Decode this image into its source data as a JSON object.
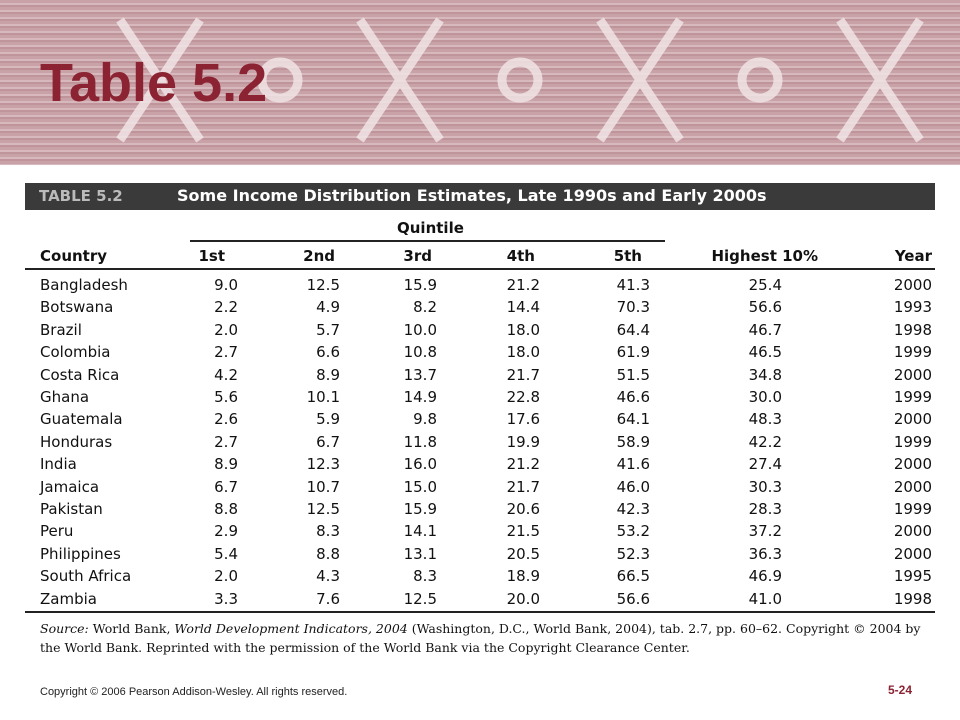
{
  "header": {
    "title": "Table 5.2"
  },
  "table": {
    "label": "TABLE 5.2",
    "caption": "Some Income Distribution Estimates, Late 1990s and Early 2000s",
    "group_header": "Quintile",
    "columns": [
      "Country",
      "1st",
      "2nd",
      "3rd",
      "4th",
      "5th",
      "Highest 10%",
      "Year"
    ],
    "rows": [
      [
        "Bangladesh",
        "9.0",
        "12.5",
        "15.9",
        "21.2",
        "41.3",
        "25.4",
        "2000"
      ],
      [
        "Botswana",
        "2.2",
        "4.9",
        "8.2",
        "14.4",
        "70.3",
        "56.6",
        "1993"
      ],
      [
        "Brazil",
        "2.0",
        "5.7",
        "10.0",
        "18.0",
        "64.4",
        "46.7",
        "1998"
      ],
      [
        "Colombia",
        "2.7",
        "6.6",
        "10.8",
        "18.0",
        "61.9",
        "46.5",
        "1999"
      ],
      [
        "Costa Rica",
        "4.2",
        "8.9",
        "13.7",
        "21.7",
        "51.5",
        "34.8",
        "2000"
      ],
      [
        "Ghana",
        "5.6",
        "10.1",
        "14.9",
        "22.8",
        "46.6",
        "30.0",
        "1999"
      ],
      [
        "Guatemala",
        "2.6",
        "5.9",
        "9.8",
        "17.6",
        "64.1",
        "48.3",
        "2000"
      ],
      [
        "Honduras",
        "2.7",
        "6.7",
        "11.8",
        "19.9",
        "58.9",
        "42.2",
        "1999"
      ],
      [
        "India",
        "8.9",
        "12.3",
        "16.0",
        "21.2",
        "41.6",
        "27.4",
        "2000"
      ],
      [
        "Jamaica",
        "6.7",
        "10.7",
        "15.0",
        "21.7",
        "46.0",
        "30.3",
        "2000"
      ],
      [
        "Pakistan",
        "8.8",
        "12.5",
        "15.9",
        "20.6",
        "42.3",
        "28.3",
        "1999"
      ],
      [
        "Peru",
        "2.9",
        "8.3",
        "14.1",
        "21.5",
        "53.2",
        "37.2",
        "2000"
      ],
      [
        "Philippines",
        "5.4",
        "8.8",
        "13.1",
        "20.5",
        "52.3",
        "36.3",
        "2000"
      ],
      [
        "South Africa",
        "2.0",
        "4.3",
        "8.3",
        "18.9",
        "66.5",
        "46.9",
        "1995"
      ],
      [
        "Zambia",
        "3.3",
        "7.6",
        "12.5",
        "20.0",
        "56.6",
        "41.0",
        "1998"
      ]
    ],
    "source": [
      "Source:",
      "World Bank,",
      "World Development Indicators, 2004",
      "(Washington, D.C., World Bank, 2004), tab. 2.7, pp. 60–62. Copyright © 2004 by the World Bank. Reprinted with the permission of the World Bank via the Copyright Clearance Center."
    ]
  },
  "footer": {
    "copyright": "Copyright © 2006 Pearson Addison-Wesley. All rights reserved.",
    "page": "5-24"
  }
}
